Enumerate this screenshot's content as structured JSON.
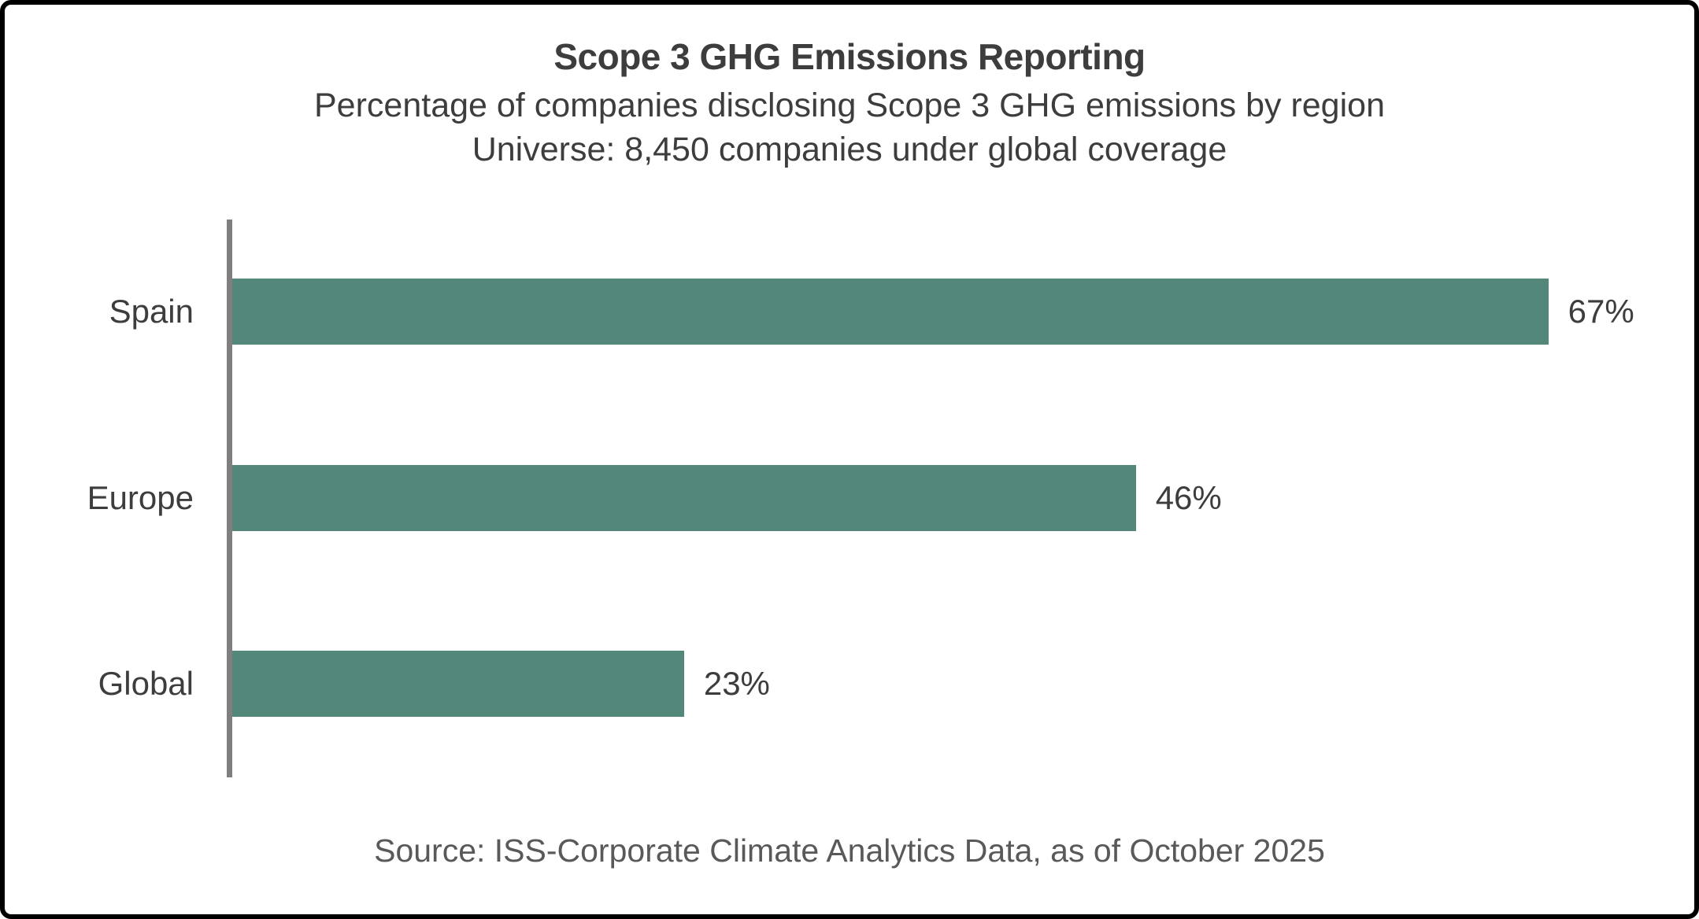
{
  "header": {
    "title": "Scope 3 GHG Emissions Reporting",
    "subtitle_line1": "Percentage of companies disclosing Scope 3 GHG emissions by region",
    "subtitle_line2": "Universe: 8,450 companies under global coverage"
  },
  "chart_data": {
    "type": "bar",
    "orientation": "horizontal",
    "title": "Scope 3 GHG Emissions Reporting",
    "subtitle": "Percentage of companies disclosing Scope 3 GHG emissions by region",
    "universe_note": "Universe: 8,450 companies under global coverage",
    "categories": [
      "Spain",
      "Europe",
      "Global"
    ],
    "values": [
      67,
      46,
      23
    ],
    "value_labels": [
      "67%",
      "46%",
      "23%"
    ],
    "unit": "%",
    "xlim": [
      0,
      75
    ],
    "grid": false,
    "legend": null,
    "source": "Source: ISS-Corporate Climate Analytics Data, as of October 2025"
  },
  "footer": {
    "source_text": "Source: ISS-Corporate Climate Analytics Data, as of October 2025"
  },
  "colors": {
    "bar": "#538779",
    "axis": "#7f7f7f",
    "title_text": "#3d3d3d",
    "source_text": "#595959",
    "border": "#000000",
    "background": "#ffffff"
  }
}
